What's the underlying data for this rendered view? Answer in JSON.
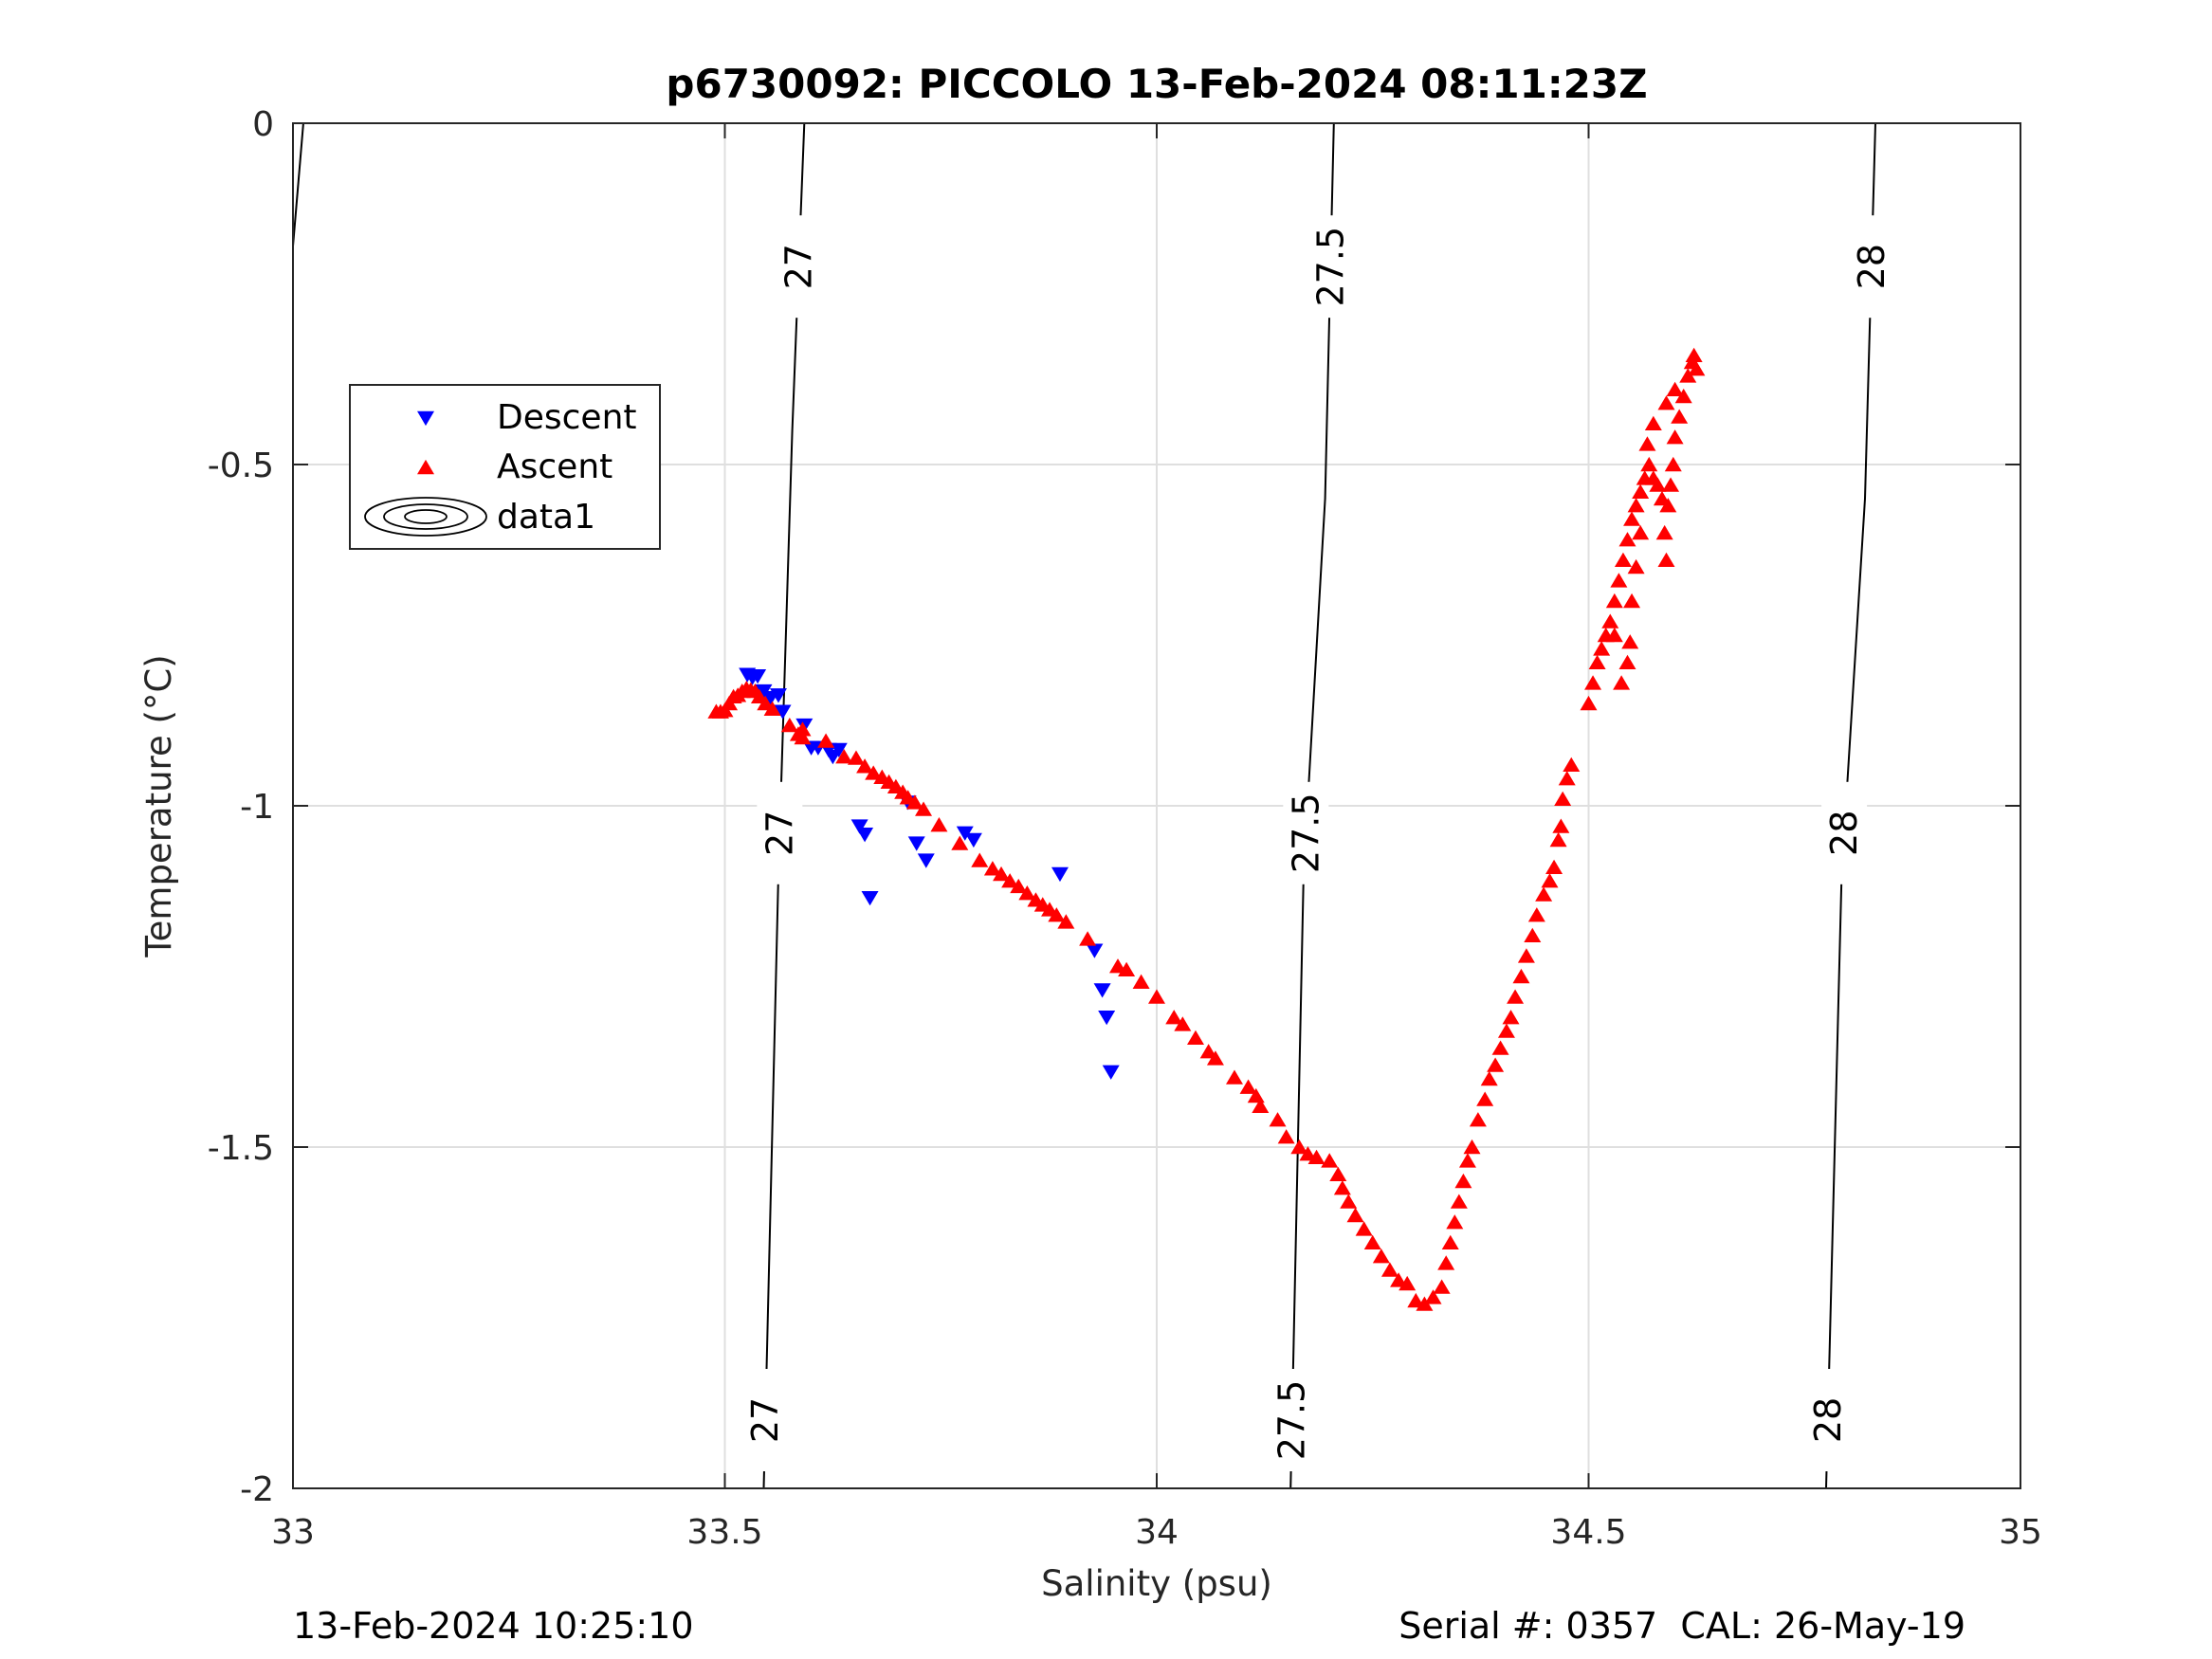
{
  "chart_data": {
    "type": "scatter",
    "title": "p6730092: PICCOLO 13-Feb-2024 08:11:23Z",
    "xlabel": "Salinity (psu)",
    "ylabel": "Temperature (°C)",
    "xlim": [
      33,
      35
    ],
    "ylim": [
      -2,
      0
    ],
    "xticks": [
      "33",
      "33.5",
      "34",
      "34.5",
      "35"
    ],
    "yticks": [
      "0",
      "-0.5",
      "-1",
      "-1.5",
      "-2"
    ],
    "grid": true,
    "legend": {
      "placement": "upper-left",
      "entries": [
        "Descent",
        "Ascent",
        "data1"
      ]
    },
    "series": [
      {
        "name": "Descent",
        "marker": "triangle-down",
        "color": "#0000ff",
        "points": [
          [
            33.526,
            -0.808
          ],
          [
            33.532,
            -0.812
          ],
          [
            33.538,
            -0.81
          ],
          [
            33.545,
            -0.832
          ],
          [
            33.553,
            -0.842
          ],
          [
            33.562,
            -0.838
          ],
          [
            33.567,
            -0.862
          ],
          [
            33.592,
            -0.882
          ],
          [
            33.6,
            -0.915
          ],
          [
            33.608,
            -0.915
          ],
          [
            33.62,
            -0.918
          ],
          [
            33.625,
            -0.928
          ],
          [
            33.632,
            -0.918
          ],
          [
            33.656,
            -1.03
          ],
          [
            33.662,
            -1.042
          ],
          [
            33.668,
            -1.135
          ],
          [
            33.712,
            -0.995
          ],
          [
            33.722,
            -1.055
          ],
          [
            33.733,
            -1.08
          ],
          [
            33.778,
            -1.04
          ],
          [
            33.788,
            -1.05
          ],
          [
            33.888,
            -1.1
          ],
          [
            33.928,
            -1.212
          ],
          [
            33.937,
            -1.27
          ],
          [
            33.942,
            -1.31
          ],
          [
            33.947,
            -1.39
          ]
        ]
      },
      {
        "name": "Ascent",
        "marker": "triangle-up",
        "color": "#ff0000",
        "points": [
          [
            33.49,
            -0.862
          ],
          [
            33.495,
            -0.862
          ],
          [
            33.5,
            -0.86
          ],
          [
            33.505,
            -0.85
          ],
          [
            33.51,
            -0.84
          ],
          [
            33.515,
            -0.838
          ],
          [
            33.52,
            -0.832
          ],
          [
            33.525,
            -0.828
          ],
          [
            33.53,
            -0.83
          ],
          [
            33.535,
            -0.832
          ],
          [
            33.54,
            -0.84
          ],
          [
            33.547,
            -0.85
          ],
          [
            33.555,
            -0.858
          ],
          [
            33.575,
            -0.882
          ],
          [
            33.585,
            -0.895
          ],
          [
            33.59,
            -0.9
          ],
          [
            33.59,
            -0.888
          ],
          [
            33.617,
            -0.905
          ],
          [
            33.638,
            -0.928
          ],
          [
            33.652,
            -0.93
          ],
          [
            33.662,
            -0.942
          ],
          [
            33.672,
            -0.952
          ],
          [
            33.682,
            -0.958
          ],
          [
            33.69,
            -0.965
          ],
          [
            33.698,
            -0.972
          ],
          [
            33.706,
            -0.98
          ],
          [
            33.712,
            -0.988
          ],
          [
            33.72,
            -0.995
          ],
          [
            33.73,
            -1.005
          ],
          [
            33.748,
            -1.028
          ],
          [
            33.772,
            -1.055
          ],
          [
            33.795,
            -1.08
          ],
          [
            33.81,
            -1.092
          ],
          [
            33.82,
            -1.1
          ],
          [
            33.83,
            -1.11
          ],
          [
            33.84,
            -1.118
          ],
          [
            33.85,
            -1.128
          ],
          [
            33.86,
            -1.138
          ],
          [
            33.868,
            -1.145
          ],
          [
            33.876,
            -1.152
          ],
          [
            33.884,
            -1.16
          ],
          [
            33.895,
            -1.17
          ],
          [
            33.92,
            -1.195
          ],
          [
            33.955,
            -1.235
          ],
          [
            33.965,
            -1.24
          ],
          [
            33.982,
            -1.258
          ],
          [
            34.0,
            -1.28
          ],
          [
            34.02,
            -1.31
          ],
          [
            34.03,
            -1.32
          ],
          [
            34.045,
            -1.34
          ],
          [
            34.06,
            -1.36
          ],
          [
            34.068,
            -1.37
          ],
          [
            34.09,
            -1.398
          ],
          [
            34.106,
            -1.412
          ],
          [
            34.115,
            -1.425
          ],
          [
            34.12,
            -1.44
          ],
          [
            34.14,
            -1.46
          ],
          [
            34.15,
            -1.485
          ],
          [
            34.165,
            -1.5
          ],
          [
            34.175,
            -1.51
          ],
          [
            34.185,
            -1.515
          ],
          [
            34.2,
            -1.52
          ],
          [
            34.21,
            -1.54
          ],
          [
            34.215,
            -1.56
          ],
          [
            34.222,
            -1.58
          ],
          [
            34.23,
            -1.6
          ],
          [
            34.24,
            -1.62
          ],
          [
            34.25,
            -1.64
          ],
          [
            34.26,
            -1.66
          ],
          [
            34.27,
            -1.68
          ],
          [
            34.28,
            -1.695
          ],
          [
            34.29,
            -1.7
          ],
          [
            34.3,
            -1.725
          ],
          [
            34.31,
            -1.73
          ],
          [
            34.32,
            -1.72
          ],
          [
            34.33,
            -1.705
          ],
          [
            34.335,
            -1.67
          ],
          [
            34.34,
            -1.64
          ],
          [
            34.345,
            -1.61
          ],
          [
            34.35,
            -1.58
          ],
          [
            34.355,
            -1.55
          ],
          [
            34.36,
            -1.52
          ],
          [
            34.365,
            -1.5
          ],
          [
            34.372,
            -1.46
          ],
          [
            34.38,
            -1.43
          ],
          [
            34.385,
            -1.4
          ],
          [
            34.392,
            -1.38
          ],
          [
            34.398,
            -1.355
          ],
          [
            34.405,
            -1.33
          ],
          [
            34.41,
            -1.31
          ],
          [
            34.415,
            -1.28
          ],
          [
            34.422,
            -1.25
          ],
          [
            34.428,
            -1.22
          ],
          [
            34.435,
            -1.19
          ],
          [
            34.44,
            -1.16
          ],
          [
            34.448,
            -1.13
          ],
          [
            34.455,
            -1.11
          ],
          [
            34.46,
            -1.09
          ],
          [
            34.465,
            -1.05
          ],
          [
            34.468,
            -1.03
          ],
          [
            34.47,
            -0.99
          ],
          [
            34.475,
            -0.96
          ],
          [
            34.48,
            -0.94
          ],
          [
            34.5,
            -0.85
          ],
          [
            34.505,
            -0.82
          ],
          [
            34.51,
            -0.79
          ],
          [
            34.515,
            -0.77
          ],
          [
            34.52,
            -0.75
          ],
          [
            34.525,
            -0.73
          ],
          [
            34.53,
            -0.7
          ],
          [
            34.535,
            -0.67
          ],
          [
            34.54,
            -0.64
          ],
          [
            34.545,
            -0.61
          ],
          [
            34.55,
            -0.58
          ],
          [
            34.555,
            -0.56
          ],
          [
            34.56,
            -0.54
          ],
          [
            34.565,
            -0.52
          ],
          [
            34.57,
            -0.5
          ],
          [
            34.575,
            -0.52
          ],
          [
            34.58,
            -0.53
          ],
          [
            34.585,
            -0.55
          ],
          [
            34.588,
            -0.6
          ],
          [
            34.59,
            -0.64
          ],
          [
            34.592,
            -0.56
          ],
          [
            34.595,
            -0.53
          ],
          [
            34.598,
            -0.5
          ],
          [
            34.6,
            -0.46
          ],
          [
            34.605,
            -0.43
          ],
          [
            34.61,
            -0.4
          ],
          [
            34.615,
            -0.37
          ],
          [
            34.62,
            -0.35
          ],
          [
            34.622,
            -0.34
          ],
          [
            34.625,
            -0.36
          ],
          [
            34.6,
            -0.39
          ],
          [
            34.59,
            -0.41
          ],
          [
            34.575,
            -0.44
          ],
          [
            34.568,
            -0.47
          ],
          [
            34.56,
            -0.6
          ],
          [
            34.555,
            -0.65
          ],
          [
            34.55,
            -0.7
          ],
          [
            34.548,
            -0.76
          ],
          [
            34.545,
            -0.79
          ],
          [
            34.538,
            -0.82
          ],
          [
            34.53,
            -0.75
          ]
        ]
      },
      {
        "name": "data1",
        "type": "contour",
        "color": "#000000",
        "levels": [
          {
            "label": "27",
            "line": [
              [
                33.545,
                -2.0
              ],
              [
                33.562,
                -1.1
              ],
              [
                33.578,
                -0.45
              ],
              [
                33.592,
                0.0
              ]
            ]
          },
          {
            "label": "27.5",
            "line": [
              [
                34.155,
                -2.0
              ],
              [
                34.17,
                -1.1
              ],
              [
                34.195,
                -0.55
              ],
              [
                34.205,
                0.0
              ]
            ]
          },
          {
            "label": "28",
            "line": [
              [
                34.775,
                -2.0
              ],
              [
                34.793,
                -1.1
              ],
              [
                34.82,
                -0.55
              ],
              [
                34.832,
                0.0
              ]
            ]
          }
        ],
        "partial_line": [
          [
            33.0,
            -0.18
          ],
          [
            33.012,
            0.0
          ]
        ]
      }
    ]
  },
  "footer": {
    "timestamp": "13-Feb-2024 10:25:10",
    "serial": "Serial #: 0357  CAL: 26-May-19"
  },
  "colors": {
    "descent": "#0000ff",
    "ascent": "#ff0000",
    "grid": "#dfdfdf",
    "axis": "#262626"
  }
}
